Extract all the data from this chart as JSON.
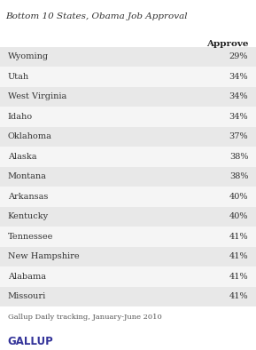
{
  "title": "Bottom 10 States, Obama Job Approval",
  "header": "Approve",
  "states": [
    "Wyoming",
    "Utah",
    "West Virginia",
    "Idaho",
    "Oklahoma",
    "Alaska",
    "Montana",
    "Arkansas",
    "Kentucky",
    "Tennessee",
    "New Hampshire",
    "Alabama",
    "Missouri"
  ],
  "values": [
    "29%",
    "34%",
    "34%",
    "34%",
    "37%",
    "38%",
    "38%",
    "40%",
    "40%",
    "41%",
    "41%",
    "41%",
    "41%"
  ],
  "row_colors": [
    "#e8e8e8",
    "#f5f5f5",
    "#e8e8e8",
    "#f5f5f5",
    "#e8e8e8",
    "#f5f5f5",
    "#e8e8e8",
    "#f5f5f5",
    "#e8e8e8",
    "#f5f5f5",
    "#e8e8e8",
    "#f5f5f5",
    "#e8e8e8"
  ],
  "bg_color": "#ffffff",
  "footer_line1": "Gallup Daily tracking, January-June 2010",
  "footer_line2": "GALLUP",
  "title_color": "#333333",
  "text_color": "#333333",
  "header_color": "#222222",
  "gallup_color": "#333399"
}
